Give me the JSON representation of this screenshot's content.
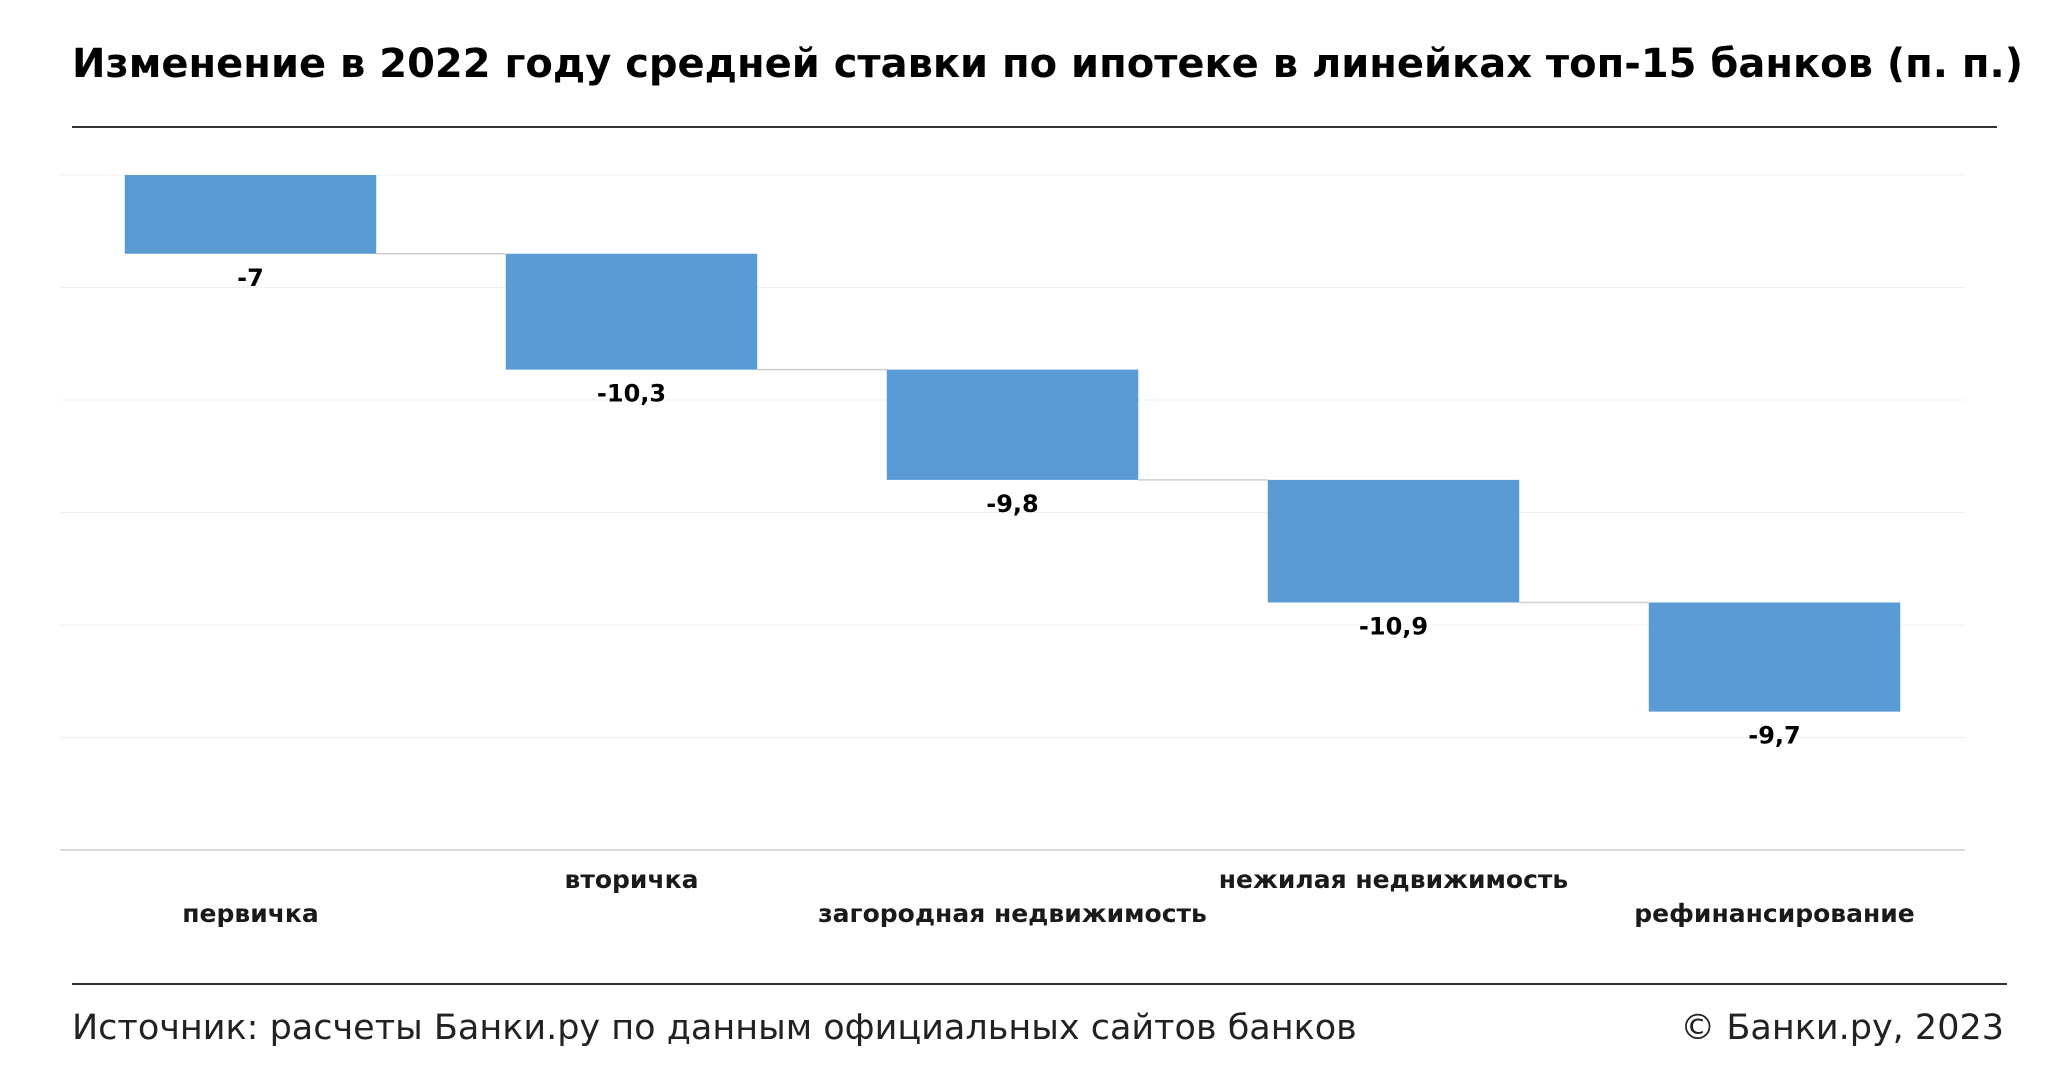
{
  "title": "Изменение в 2022 году средней ставки по ипотеке в линейках топ-15 банков (п. п.)",
  "footer": {
    "source": "Источник: расчеты Банки.ру по данным официальных сайтов банков",
    "copyright": "© Банки.ру, 2023"
  },
  "chart_data": {
    "type": "bar",
    "subtype": "waterfall",
    "categories": [
      "первичка",
      "вторичка",
      "загородная недвижимость",
      "нежилая недвижимость",
      "рефинансирование"
    ],
    "values": [
      -7,
      -10.3,
      -9.8,
      -10.9,
      -9.7
    ],
    "value_labels": [
      "-7",
      "-10,3",
      "-9,8",
      "-10,9",
      "-9,7"
    ],
    "ylim": [
      -60,
      0
    ],
    "grid": true,
    "legend": "none",
    "colors": {
      "bar": "#5b9bd5",
      "grid": "#f0f0f0",
      "axis": "#d9d9d9",
      "connector": "#cfcfcf"
    }
  }
}
